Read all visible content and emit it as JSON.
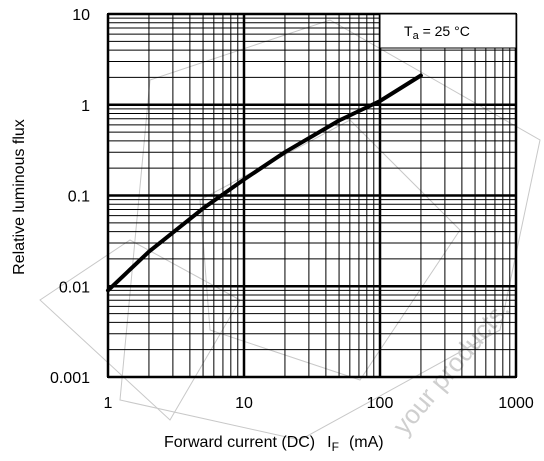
{
  "chart_data": {
    "type": "line",
    "xscale": "log",
    "yscale": "log",
    "xlim": [
      1,
      1000
    ],
    "ylim": [
      0.001,
      10
    ],
    "xticks": [
      1,
      10,
      100,
      1000
    ],
    "xtick_labels": [
      "1",
      "10",
      "100",
      "1000"
    ],
    "yticks": [
      0.001,
      0.01,
      0.1,
      1,
      10
    ],
    "ytick_labels": [
      "0.001",
      "0.01",
      "0.1",
      "1",
      "10"
    ],
    "xlabel": {
      "text": "Forward current (DC)",
      "symbol": "I",
      "symbol_sub": "F",
      "unit": "(mA)"
    },
    "ylabel": "Relative luminous flux",
    "annotation": {
      "symbol": "T",
      "symbol_sub": "a",
      "text": " = 25 °C"
    },
    "grid": "major and minor",
    "line_color": "#000000",
    "series": [
      {
        "x": [
          1,
          2,
          5,
          10,
          20,
          50,
          100,
          200
        ],
        "y": [
          0.009,
          0.024,
          0.072,
          0.15,
          0.3,
          0.67,
          1.1,
          2.1
        ]
      }
    ]
  }
}
